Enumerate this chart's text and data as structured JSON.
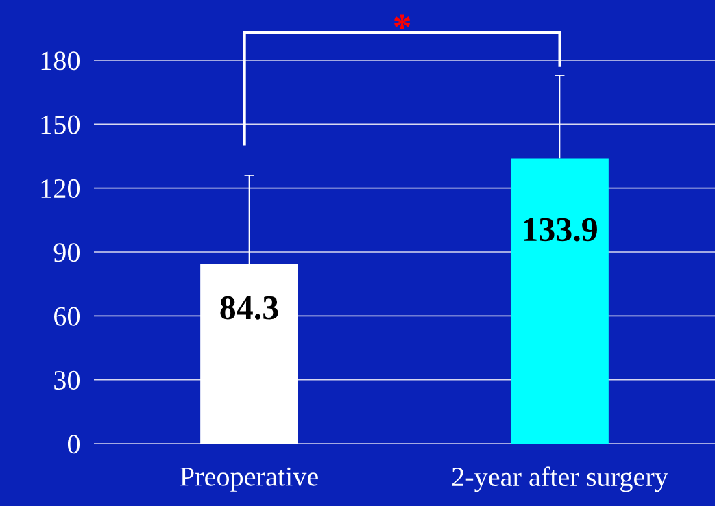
{
  "chart_data": {
    "type": "bar",
    "categories": [
      "Preoperative",
      "2-year after surgery"
    ],
    "values": [
      84.3,
      133.9
    ],
    "colors": [
      "#ffffff",
      "#00ffff"
    ],
    "errors": [
      [
        84.3,
        126.0
      ],
      [
        133.9,
        172.9
      ]
    ],
    "data_labels": true,
    "ylim": [
      0,
      180
    ],
    "yticks": [
      0,
      30,
      60,
      90,
      120,
      150,
      180
    ],
    "grid": "y",
    "annotations": [
      "*"
    ]
  }
}
